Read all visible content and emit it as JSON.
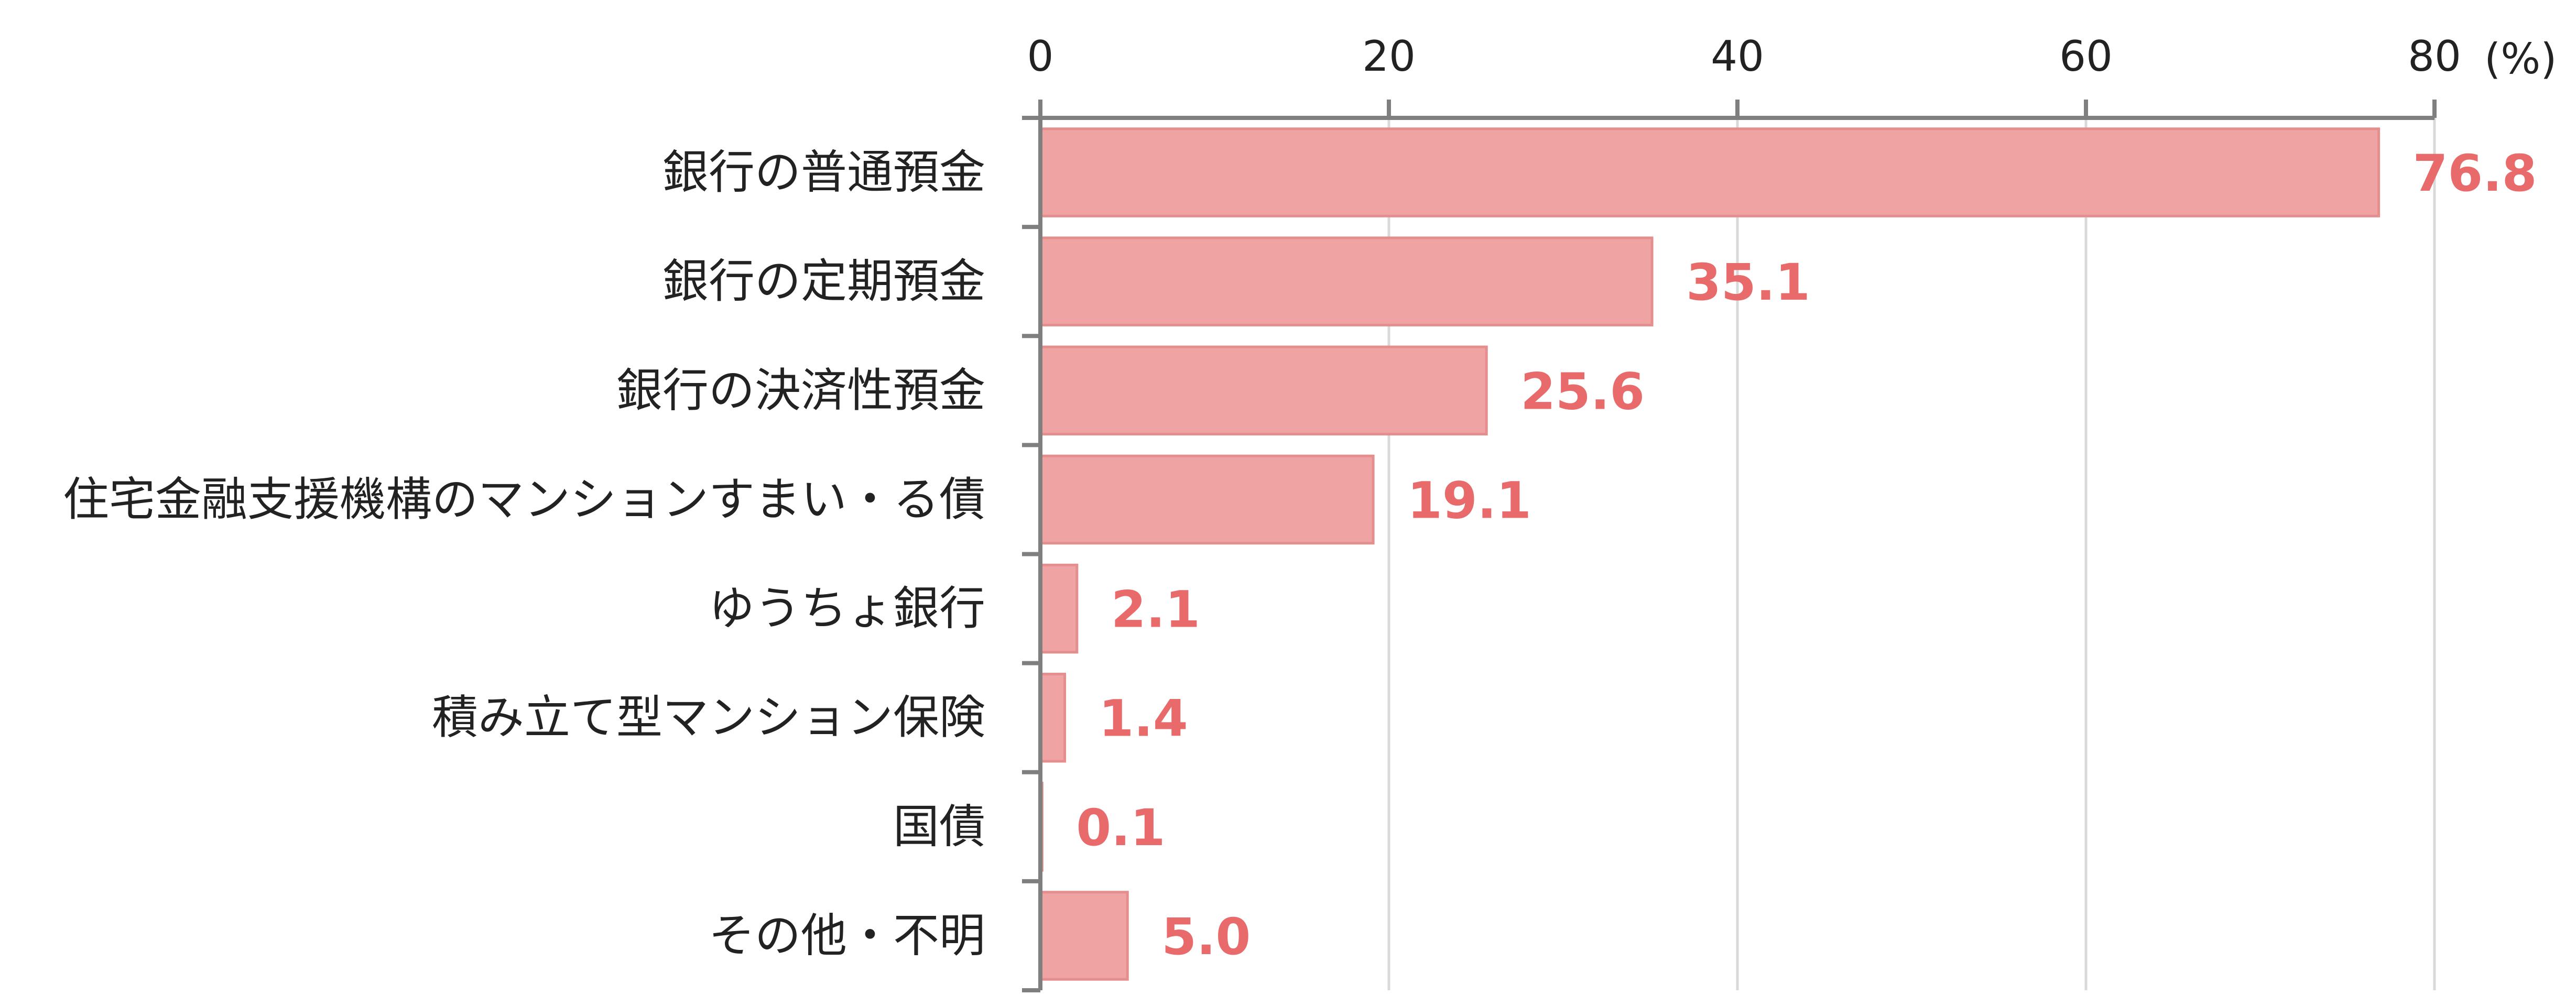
{
  "chart_data": {
    "type": "bar",
    "orientation": "horizontal",
    "title": "",
    "xlabel": "",
    "ylabel": "",
    "unit": "(%)",
    "xlim": [
      0,
      80
    ],
    "ticks": [
      0,
      20,
      40,
      60,
      80
    ],
    "grid": true,
    "axis_position": "top",
    "categories": [
      "銀行の普通預金",
      "銀行の定期預金",
      "銀行の決済性預金",
      "住宅金融支援機構のマンションすまい・る債",
      "ゆうちょ銀行",
      "積み立て型マンション保険",
      "国債",
      "その他・不明"
    ],
    "values": [
      76.8,
      35.1,
      25.6,
      19.1,
      2.1,
      1.4,
      0.1,
      5.0
    ],
    "value_labels": [
      "76.8",
      "35.1",
      "25.6",
      "19.1",
      "2.1",
      "1.4",
      "0.1",
      "5.0"
    ],
    "colors": {
      "bar_fill": "#f0a3a3",
      "bar_stroke": "#e58e8e",
      "value_label": "#e86a6a"
    }
  }
}
